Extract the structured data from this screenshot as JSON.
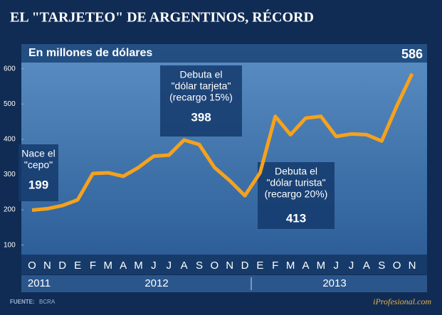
{
  "chart_data": {
    "type": "line",
    "title": "EL \"TARJETEO\" DE ARGENTINOS, RÉCORD",
    "subtitle": "En millones de dólares",
    "categories": [
      "O",
      "N",
      "D",
      "E",
      "F",
      "M",
      "A",
      "M",
      "J",
      "J",
      "A",
      "S",
      "O",
      "N",
      "D",
      "E",
      "F",
      "M",
      "A",
      "M",
      "J",
      "J",
      "A",
      "S",
      "O",
      "N"
    ],
    "years": [
      "2011",
      "2012",
      "2013"
    ],
    "values": [
      199,
      203,
      212,
      228,
      303,
      305,
      295,
      320,
      352,
      355,
      398,
      385,
      320,
      283,
      240,
      305,
      465,
      413,
      460,
      465,
      408,
      415,
      413,
      395,
      495,
      586
    ],
    "color": "#f5a21c",
    "ylim": [
      73,
      670
    ],
    "yticks": [
      100,
      200,
      300,
      400,
      500,
      600
    ],
    "annotations": [
      [
        "Nace el",
        "\"cepo\""
      ],
      [
        "Debuta el",
        "\"dólar tarjeta\"",
        "(recargo 15%)"
      ],
      [
        "Debuta el",
        "\"dólar turista\"",
        "(recargo 20%)"
      ]
    ],
    "source_label": "FUENTE:",
    "source": "BCRA",
    "brand": "iProfesional.com"
  }
}
